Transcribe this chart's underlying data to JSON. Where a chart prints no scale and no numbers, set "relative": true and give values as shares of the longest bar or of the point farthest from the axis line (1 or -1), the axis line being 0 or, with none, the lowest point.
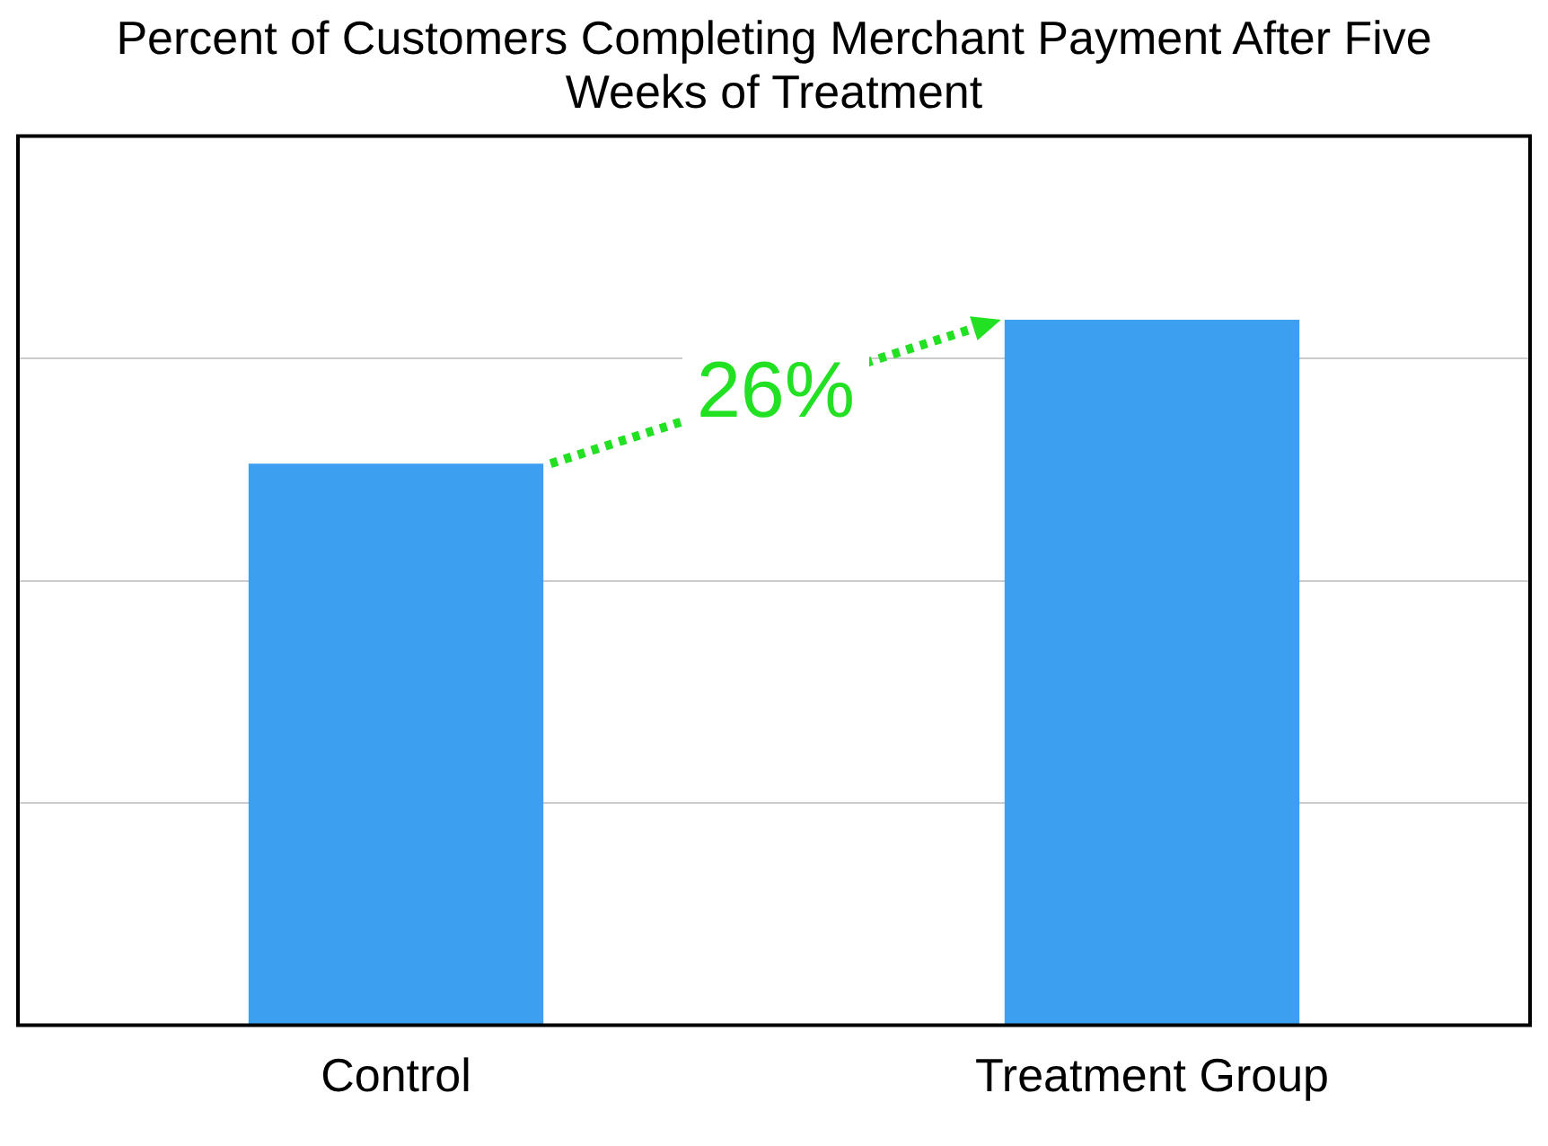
{
  "chart_data": {
    "type": "bar",
    "title": "Percent of Customers Completing Merchant Payment After Five Weeks of Treatment",
    "categories": [
      "Control",
      "Treatment Group"
    ],
    "values": [
      0.796,
      1
    ],
    "color": "#3d9ff0",
    "relative": true,
    "grid": "y",
    "annotations": [
      "26%"
    ]
  }
}
